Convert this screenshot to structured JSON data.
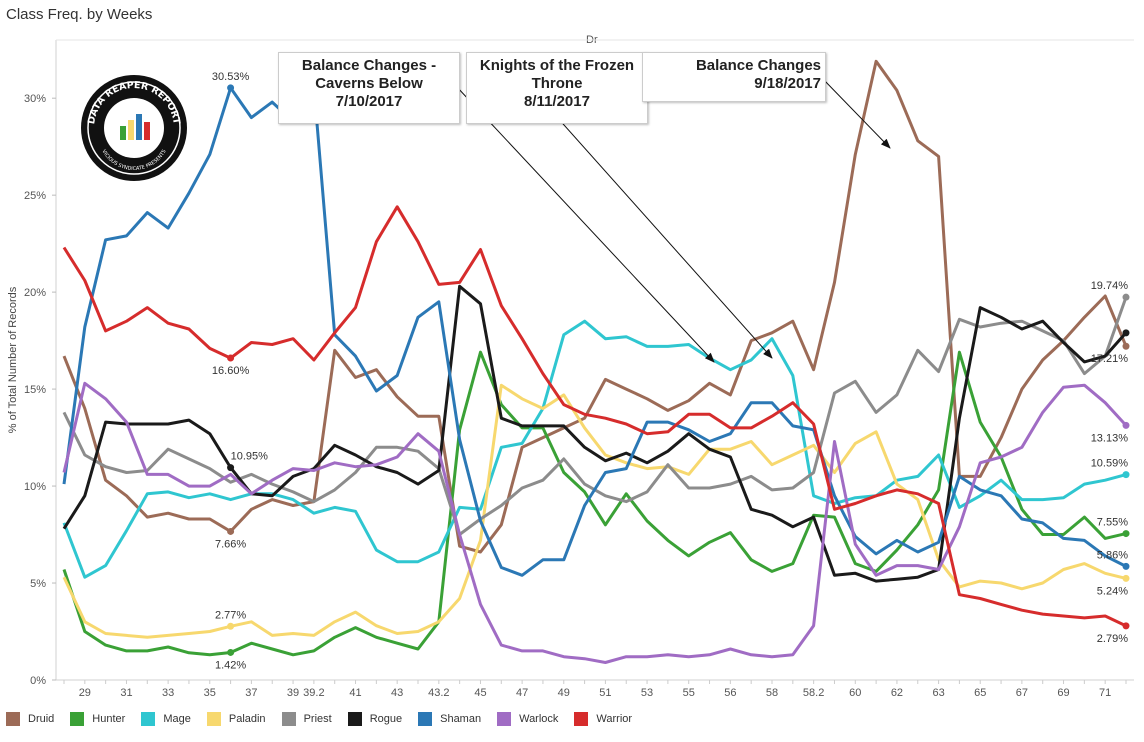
{
  "header": {
    "title": "Class Freq. by Weeks",
    "column_header": "Dr"
  },
  "logo": {
    "text_top": "DATA REAPER REPORT",
    "text_bottom": "VICIOUS SYNDICATE PRESENTS"
  },
  "annotations": [
    {
      "id": "caverns",
      "line1": "Balance Changes -",
      "line2": "Caverns Below",
      "line3": "7/10/2017"
    },
    {
      "id": "kft",
      "line1": "Knights of the Frozen",
      "line2": "Throne",
      "line3": "8/11/2017"
    },
    {
      "id": "sept",
      "line1": "Balance Changes",
      "line2": "9/18/2017"
    }
  ],
  "colors": {
    "Druid": "#9c6b57",
    "Hunter": "#3aa136",
    "Mage": "#2fc6d0",
    "Paladin": "#f7d86e",
    "Priest": "#8c8c8c",
    "Rogue": "#1a1a1a",
    "Shaman": "#2b78b5",
    "Warlock": "#a06cc4",
    "Warrior": "#d62c2c"
  },
  "chart_data": {
    "type": "line",
    "title": "Class Freq. by Weeks",
    "xlabel": "",
    "ylabel": "% of Total Number of Records",
    "ylim": [
      0,
      33
    ],
    "y_ticks": [
      "0%",
      "5%",
      "10%",
      "15%",
      "20%",
      "25%",
      "30%"
    ],
    "x_tick_labels": [
      "29",
      "31",
      "33",
      "35",
      "37",
      "39",
      "39.2",
      "41",
      "43",
      "43.2",
      "45",
      "47",
      "49",
      "51",
      "53",
      "55",
      "56",
      "58",
      "58.2",
      "60",
      "62",
      "63",
      "65",
      "67",
      "69",
      "71"
    ],
    "x": [
      "28",
      "29",
      "30",
      "31",
      "32",
      "33",
      "34",
      "35",
      "36",
      "37",
      "38",
      "39",
      "39.2",
      "40",
      "41",
      "42",
      "43",
      "43.1",
      "43.2",
      "44",
      "45",
      "46",
      "47",
      "48",
      "49",
      "50",
      "51",
      "52",
      "53",
      "54",
      "55",
      "55.5",
      "56",
      "57",
      "58",
      "58.1",
      "58.2",
      "59",
      "60",
      "61",
      "62",
      "62.5",
      "63",
      "64",
      "65",
      "66",
      "67",
      "68",
      "69",
      "70",
      "71",
      "72"
    ],
    "series": [
      {
        "name": "Druid",
        "values": [
          16.7,
          14.0,
          10.3,
          9.5,
          8.4,
          8.6,
          8.3,
          8.3,
          7.66,
          8.8,
          9.3,
          9.0,
          9.2,
          17.0,
          15.6,
          16.0,
          14.6,
          13.6,
          13.6,
          6.9,
          6.6,
          8.0,
          12.0,
          12.5,
          13.0,
          13.5,
          15.5,
          15.0,
          14.5,
          13.9,
          14.4,
          15.3,
          14.7,
          17.5,
          17.9,
          18.5,
          16.0,
          20.5,
          27.1,
          31.9,
          30.4,
          27.8,
          27.0,
          10.5,
          10.5,
          12.5,
          15.0,
          16.5,
          17.5,
          18.7,
          19.8,
          17.21
        ]
      },
      {
        "name": "Hunter",
        "values": [
          5.7,
          2.5,
          1.8,
          1.5,
          1.5,
          1.7,
          1.4,
          1.3,
          1.42,
          1.9,
          1.6,
          1.3,
          1.5,
          2.2,
          2.7,
          2.2,
          1.9,
          1.6,
          3.0,
          12.9,
          16.9,
          14.2,
          13.0,
          13.0,
          10.7,
          9.7,
          8.0,
          9.6,
          8.2,
          7.2,
          6.4,
          7.1,
          7.6,
          6.2,
          5.6,
          6.0,
          8.5,
          8.4,
          6.0,
          5.6,
          6.7,
          8.0,
          9.8,
          16.9,
          13.3,
          11.5,
          8.8,
          7.5,
          7.5,
          8.4,
          7.3,
          7.55
        ]
      },
      {
        "name": "Mage",
        "values": [
          8.1,
          5.3,
          5.9,
          7.7,
          9.6,
          9.7,
          9.4,
          9.6,
          9.3,
          9.6,
          9.6,
          9.3,
          8.6,
          8.9,
          8.7,
          6.7,
          6.1,
          6.1,
          6.6,
          8.9,
          8.8,
          12.0,
          12.2,
          14.0,
          17.8,
          18.5,
          17.6,
          17.7,
          17.2,
          17.2,
          17.3,
          16.6,
          16.0,
          16.5,
          17.6,
          15.7,
          9.5,
          9.1,
          9.4,
          9.5,
          10.3,
          10.5,
          11.6,
          8.9,
          9.5,
          10.3,
          9.3,
          9.3,
          9.4,
          10.1,
          10.3,
          10.59
        ]
      },
      {
        "name": "Paladin",
        "values": [
          5.3,
          3.0,
          2.4,
          2.3,
          2.2,
          2.3,
          2.4,
          2.5,
          2.77,
          3.0,
          2.3,
          2.4,
          2.3,
          3.0,
          3.5,
          2.8,
          2.4,
          2.5,
          3.0,
          4.2,
          7.2,
          15.2,
          14.5,
          14.0,
          14.7,
          13.0,
          11.6,
          11.2,
          10.9,
          11.0,
          10.6,
          11.9,
          11.9,
          12.3,
          11.1,
          11.6,
          12.1,
          10.7,
          12.2,
          12.8,
          10.1,
          9.3,
          6.2,
          4.8,
          5.1,
          5.0,
          4.7,
          5.0,
          5.7,
          6.0,
          5.5,
          5.24
        ]
      },
      {
        "name": "Priest",
        "values": [
          13.8,
          11.6,
          11.0,
          10.7,
          10.8,
          11.9,
          11.4,
          10.9,
          10.2,
          10.6,
          10.1,
          9.7,
          9.2,
          9.8,
          10.7,
          12.0,
          12.0,
          11.8,
          10.9,
          7.5,
          8.3,
          9.0,
          9.9,
          10.3,
          11.4,
          10.1,
          9.5,
          9.2,
          9.7,
          11.1,
          9.9,
          9.9,
          10.1,
          10.5,
          9.8,
          9.9,
          10.7,
          14.8,
          15.4,
          13.8,
          14.7,
          17.0,
          15.9,
          18.6,
          18.2,
          18.4,
          18.5,
          18.0,
          17.5,
          15.8,
          16.7,
          19.74
        ]
      },
      {
        "name": "Rogue",
        "values": [
          7.8,
          9.5,
          13.3,
          13.2,
          13.2,
          13.2,
          13.4,
          12.7,
          10.95,
          9.6,
          9.5,
          10.5,
          10.9,
          12.1,
          11.6,
          11.0,
          10.7,
          10.1,
          10.8,
          20.3,
          19.4,
          13.5,
          13.1,
          13.1,
          13.1,
          12.0,
          11.3,
          11.7,
          11.2,
          11.8,
          12.7,
          11.9,
          11.5,
          8.8,
          8.5,
          7.9,
          8.4,
          5.4,
          5.5,
          5.1,
          5.2,
          5.3,
          5.7,
          13.5,
          19.2,
          18.7,
          18.1,
          18.5,
          17.4,
          16.4,
          16.7,
          17.9
        ]
      },
      {
        "name": "Shaman",
        "values": [
          10.1,
          18.2,
          22.7,
          22.9,
          24.1,
          23.3,
          25.1,
          27.1,
          30.53,
          29.0,
          29.8,
          28.8,
          30.6,
          17.8,
          16.7,
          14.9,
          15.7,
          18.7,
          19.5,
          12.4,
          8.2,
          5.8,
          5.4,
          6.2,
          6.2,
          9.0,
          10.7,
          10.9,
          13.3,
          13.3,
          12.9,
          12.3,
          12.7,
          14.3,
          14.3,
          13.1,
          12.9,
          9.5,
          7.4,
          6.5,
          7.2,
          6.6,
          7.1,
          10.5,
          9.8,
          9.5,
          8.3,
          8.1,
          7.3,
          7.2,
          6.4,
          5.86
        ]
      },
      {
        "name": "Warlock",
        "values": [
          10.7,
          15.3,
          14.5,
          13.3,
          10.6,
          10.6,
          10.0,
          10.0,
          10.6,
          9.6,
          10.3,
          10.9,
          10.8,
          11.2,
          11.0,
          11.1,
          11.5,
          12.7,
          11.8,
          7.5,
          3.9,
          1.8,
          1.5,
          1.5,
          1.2,
          1.1,
          0.9,
          1.2,
          1.2,
          1.3,
          1.2,
          1.3,
          1.6,
          1.3,
          1.2,
          1.3,
          2.8,
          12.3,
          7.0,
          5.4,
          5.9,
          5.9,
          5.7,
          7.9,
          11.2,
          11.5,
          12.0,
          13.8,
          15.1,
          15.2,
          14.3,
          13.13
        ]
      },
      {
        "name": "Warrior",
        "values": [
          22.3,
          20.6,
          18.0,
          18.5,
          19.2,
          18.4,
          18.1,
          17.1,
          16.6,
          17.4,
          17.3,
          17.6,
          16.5,
          17.9,
          19.2,
          22.6,
          24.4,
          22.6,
          20.4,
          20.5,
          22.2,
          19.3,
          17.6,
          15.8,
          14.2,
          13.7,
          13.5,
          13.2,
          12.7,
          12.8,
          13.7,
          13.7,
          13.0,
          13.0,
          13.6,
          14.3,
          13.2,
          8.8,
          9.1,
          9.5,
          9.8,
          9.6,
          9.1,
          4.4,
          4.2,
          3.9,
          3.6,
          3.4,
          3.3,
          3.2,
          3.3,
          2.79
        ]
      }
    ],
    "data_labels": [
      {
        "series": "Shaman",
        "index": 8,
        "text": "30.53%",
        "pos": "above"
      },
      {
        "series": "Warrior",
        "index": 8,
        "text": "16.60%",
        "pos": "below"
      },
      {
        "series": "Rogue",
        "index": 8,
        "text": "10.95%",
        "pos": "right-above"
      },
      {
        "series": "Druid",
        "index": 8,
        "text": "7.66%",
        "pos": "below"
      },
      {
        "series": "Paladin",
        "index": 8,
        "text": "2.77%",
        "pos": "above"
      },
      {
        "series": "Hunter",
        "index": 8,
        "text": "1.42%",
        "pos": "below"
      },
      {
        "series": "Priest",
        "index": 51,
        "text": "19.74%",
        "pos": "above"
      },
      {
        "series": "Druid",
        "index": 51,
        "text": "17.21%",
        "pos": "below"
      },
      {
        "series": "Warlock",
        "index": 51,
        "text": "13.13%",
        "pos": "below"
      },
      {
        "series": "Mage",
        "index": 51,
        "text": "10.59%",
        "pos": "above"
      },
      {
        "series": "Hunter",
        "index": 51,
        "text": "7.55%",
        "pos": "above"
      },
      {
        "series": "Shaman",
        "index": 51,
        "text": "5.86%",
        "pos": "above"
      },
      {
        "series": "Paladin",
        "index": 51,
        "text": "5.24%",
        "pos": "below"
      },
      {
        "series": "Warrior",
        "index": 51,
        "text": "2.79%",
        "pos": "below"
      }
    ],
    "legend": {
      "position": "bottom",
      "items": [
        "Druid",
        "Hunter",
        "Mage",
        "Paladin",
        "Priest",
        "Rogue",
        "Shaman",
        "Warlock",
        "Warrior"
      ]
    },
    "grid": false
  }
}
